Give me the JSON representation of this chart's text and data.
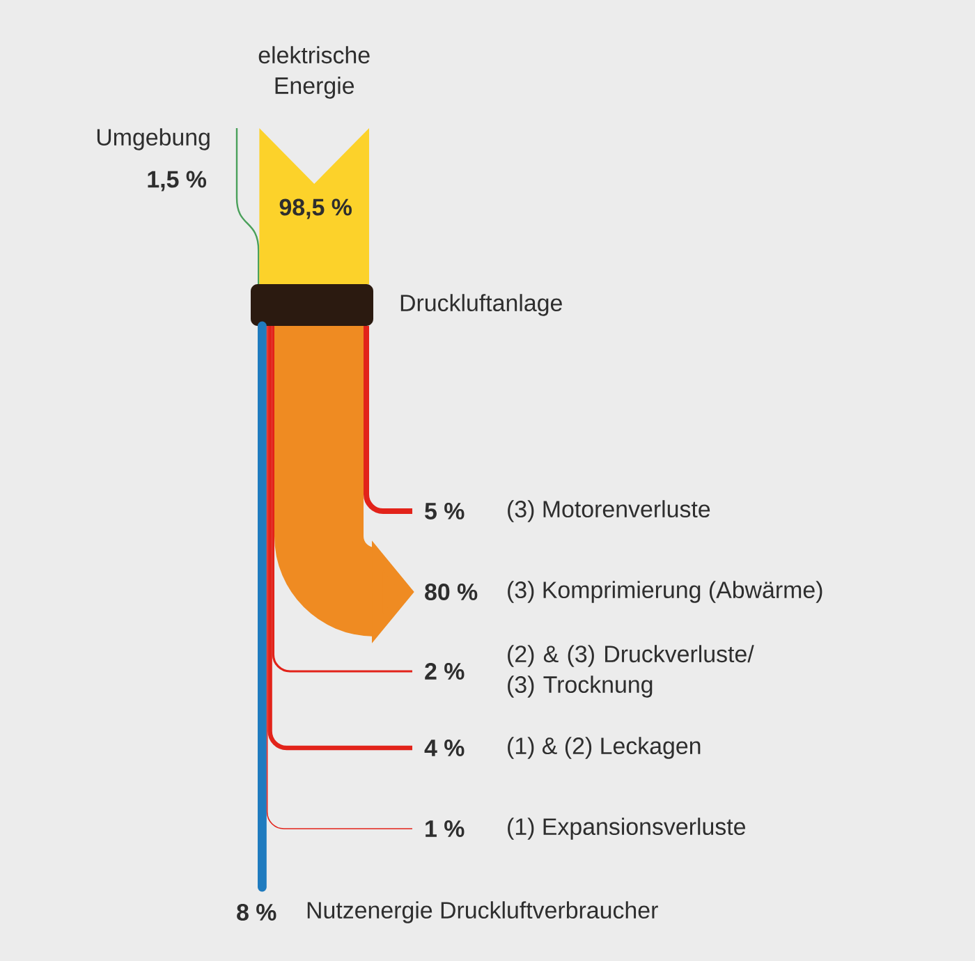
{
  "chart_data": {
    "type": "other",
    "categories": [
      "Umgebung",
      "elektrische Energie",
      "(3) Motorenverluste",
      "(3) Komprimierung (Abwärme)",
      "(2) & (3) Druckverluste/ (3) Trocknung",
      "(1) & (2) Leckagen",
      "(1) Expansionsverluste",
      "Nutzenergie Druckluftverbraucher"
    ],
    "values": [
      1.5,
      98.5,
      5,
      80,
      2,
      4,
      1,
      8
    ],
    "value_labels": [
      "1,5 %",
      "98,5 %",
      "5 %",
      "80 %",
      "2 %",
      "4 %",
      "1 %",
      "8 %"
    ],
    "colors": [
      "#4aa05a",
      "#fcd22a",
      "#e2231a",
      "#ef8b22",
      "#e2231a",
      "#e2231a",
      "#e2231a",
      "#1f7bbf"
    ],
    "annotations": [
      "Druckluftanlage"
    ]
  }
}
